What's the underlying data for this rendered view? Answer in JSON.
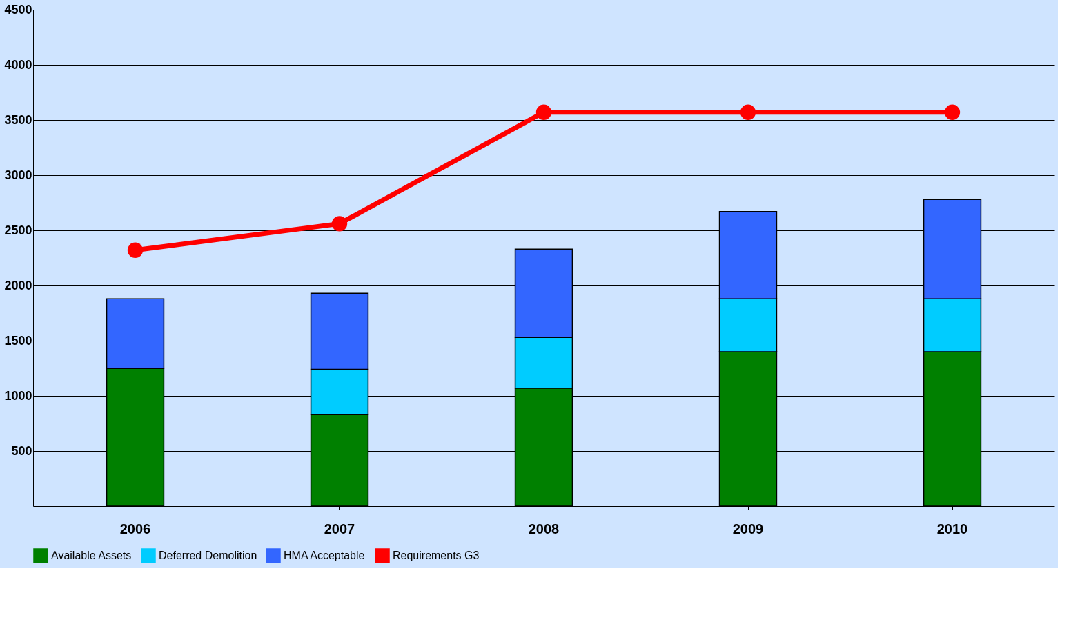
{
  "chart_data": {
    "type": "bar",
    "stacked": true,
    "categories": [
      "2006",
      "2007",
      "2008",
      "2009",
      "2010"
    ],
    "series": [
      {
        "name": "Available Assets",
        "color": "#008000",
        "values": [
          1250,
          830,
          1070,
          1400,
          1400
        ]
      },
      {
        "name": "Deferred Demolition",
        "color": "#00ccff",
        "values": [
          0,
          410,
          460,
          480,
          480
        ]
      },
      {
        "name": "HMA Acceptable",
        "color": "#3366ff",
        "values": [
          630,
          690,
          800,
          790,
          900
        ]
      },
      {
        "name": "Requirements G3",
        "color": "#ff0000",
        "type": "line",
        "values": [
          2320,
          2560,
          3570,
          3570,
          3570
        ]
      }
    ],
    "ylim": [
      0,
      4500
    ],
    "yticks": [
      500,
      1000,
      1500,
      2000,
      2500,
      3000,
      3500,
      4000,
      4500
    ],
    "grid": "y",
    "legend": "bottom",
    "marker": "circle",
    "line_style": "solid"
  }
}
